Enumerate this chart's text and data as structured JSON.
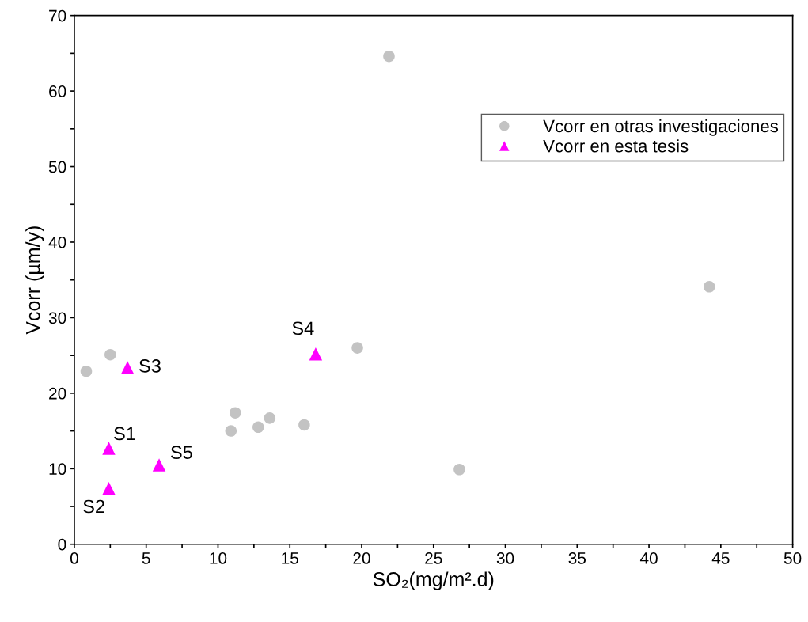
{
  "chart_data": {
    "type": "scatter",
    "xlabel": "SO₂(mg/m².d)",
    "ylabel": "Vcorr (µm/y)",
    "series": [
      {
        "name": "Vcorr en otras investigaciones",
        "color": "#c3c3c3",
        "marker": "circle",
        "x": [
          0.83,
          2.5,
          11.2,
          10.9,
          12.8,
          13.6,
          16.0,
          19.7,
          21.9,
          26.8,
          44.2
        ],
        "values": [
          22.9,
          25.1,
          17.4,
          15.0,
          15.5,
          16.7,
          15.8,
          26.0,
          64.6,
          9.9,
          34.1
        ]
      },
      {
        "name": "Vcorr en esta tesis",
        "color": "#ff00ff",
        "marker": "triangle",
        "x": [
          2.4,
          2.4,
          3.7,
          16.8,
          5.9
        ],
        "values": [
          12.7,
          7.4,
          23.4,
          25.2,
          10.5
        ]
      }
    ],
    "annotations": [
      {
        "text": "S1",
        "x": 2.4,
        "y": 12.7
      },
      {
        "text": "S2",
        "x": 2.4,
        "y": 7.4
      },
      {
        "text": "S3",
        "x": 3.7,
        "y": 23.4
      },
      {
        "text": "S4",
        "x": 16.8,
        "y": 25.2
      },
      {
        "text": "S5",
        "x": 5.9,
        "y": 10.5
      }
    ],
    "xlim": [
      0,
      50
    ],
    "ylim": [
      0,
      70
    ],
    "xticks": [
      0,
      {
        "value": 2.5,
        "label": null
      },
      5,
      {
        "value": 7.5,
        "label": null
      },
      10,
      {
        "value": 12.5,
        "label": null
      },
      15,
      {
        "value": 17.5,
        "label": null
      },
      20,
      {
        "value": 22.5,
        "label": null
      },
      25,
      {
        "value": 27.5,
        "label": null
      },
      30,
      {
        "value": 32.5,
        "label": null
      },
      35,
      {
        "value": 37.5,
        "label": null
      },
      40,
      {
        "value": 42.5,
        "label": null
      },
      45,
      {
        "value": 47.5,
        "label": null
      },
      50
    ],
    "yticks": [
      0,
      {
        "value": 5,
        "label": null
      },
      10,
      {
        "value": 15,
        "label": null
      },
      20,
      {
        "value": 25,
        "label": null
      },
      30,
      {
        "value": 35,
        "label": null
      },
      40,
      {
        "value": 45,
        "label": null
      },
      50,
      {
        "value": 55,
        "label": null
      },
      60,
      {
        "value": 65,
        "label": null
      },
      70
    ],
    "grid": false,
    "legend": "top right"
  }
}
